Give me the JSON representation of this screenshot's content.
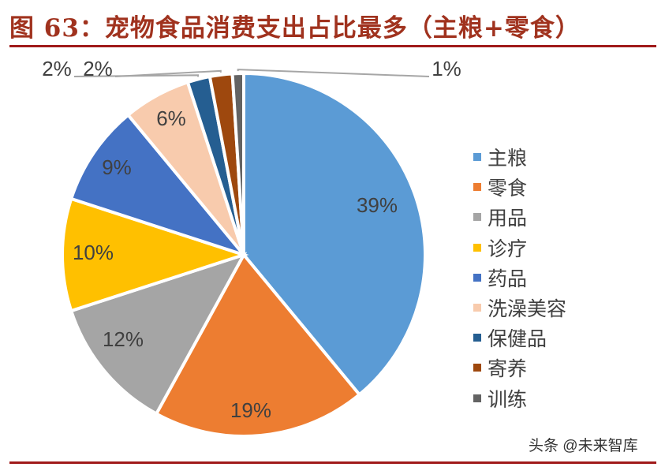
{
  "header": {
    "title": "图 63：宠物食品消费支出占比最多（主粮+零食）"
  },
  "watermark": "头条 @未来智库",
  "chart_data": {
    "type": "pie",
    "title": "图 63：宠物食品消费支出占比最多（主粮+零食）",
    "start_angle": "12 o'clock, clockwise",
    "legend_position": "right",
    "categories": [
      "主粮",
      "零食",
      "用品",
      "诊疗",
      "药品",
      "洗澡美容",
      "保健品",
      "寄养",
      "训练"
    ],
    "values": [
      39,
      19,
      12,
      10,
      9,
      6,
      2,
      2,
      1
    ],
    "labels": [
      "39%",
      "19%",
      "12%",
      "10%",
      "9%",
      "6%",
      "2%",
      "2%",
      "1%"
    ],
    "colors": [
      "#5b9bd5",
      "#ed7d31",
      "#a5a5a5",
      "#ffc000",
      "#4472c4",
      "#f8cbad",
      "#255e91",
      "#9e480e",
      "#636363"
    ]
  },
  "legend": {
    "items": [
      {
        "label": "主粮",
        "color": "#5b9bd5"
      },
      {
        "label": "零食",
        "color": "#ed7d31"
      },
      {
        "label": "用品",
        "color": "#a5a5a5"
      },
      {
        "label": "诊疗",
        "color": "#ffc000"
      },
      {
        "label": "药品",
        "color": "#4472c4"
      },
      {
        "label": "洗澡美容",
        "color": "#f8cbad"
      },
      {
        "label": "保健品",
        "color": "#255e91"
      },
      {
        "label": "寄养",
        "color": "#9e480e"
      },
      {
        "label": "训练",
        "color": "#636363"
      }
    ]
  }
}
